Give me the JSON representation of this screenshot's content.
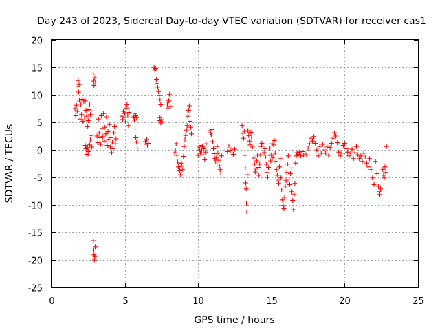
{
  "chart_data": {
    "type": "scatter",
    "title": "Day 243 of 2023, Sidereal Day-to-day VTEC variation (SDTVAR) for receiver cas1",
    "xlabel": "GPS time / hours",
    "ylabel": "SDTVAR / TECUs",
    "xlim": [
      0,
      25
    ],
    "ylim": [
      -25,
      20
    ],
    "xticks": [
      0,
      5,
      10,
      15,
      20,
      25
    ],
    "yticks": [
      -25,
      -20,
      -15,
      -10,
      -5,
      0,
      5,
      10,
      15,
      20
    ],
    "xtick_labels": [
      "0",
      "5",
      "10",
      "15",
      "20",
      "25"
    ],
    "ytick_labels": [
      "-25",
      "-20",
      "-15",
      "-10",
      "-5",
      "0",
      "5",
      "10",
      "15",
      "20"
    ],
    "grid": true,
    "marker": "+",
    "color": "#ff0000",
    "series": [
      {
        "name": "cas1",
        "points": [
          [
            1.6,
            7.5
          ],
          [
            1.65,
            6.2
          ],
          [
            1.7,
            8.1
          ],
          [
            1.75,
            7.0
          ],
          [
            1.8,
            11.5
          ],
          [
            1.82,
            12.6
          ],
          [
            1.85,
            10.5
          ],
          [
            1.88,
            11.9
          ],
          [
            1.9,
            9.0
          ],
          [
            1.95,
            5.6
          ],
          [
            2.0,
            8.3
          ],
          [
            2.05,
            6.4
          ],
          [
            2.1,
            9.2
          ],
          [
            2.15,
            5.2
          ],
          [
            2.2,
            8.7
          ],
          [
            2.25,
            5.8
          ],
          [
            2.3,
            8.9
          ],
          [
            2.35,
            7.2
          ],
          [
            2.4,
            6.1
          ],
          [
            2.45,
            4.2
          ],
          [
            2.5,
            5.3
          ],
          [
            2.55,
            7.3
          ],
          [
            2.6,
            8.3
          ],
          [
            2.65,
            6.4
          ],
          [
            2.7,
            7.1
          ],
          [
            2.3,
            0.8
          ],
          [
            2.35,
            0.2
          ],
          [
            2.4,
            -0.8
          ],
          [
            2.45,
            0.4
          ],
          [
            2.5,
            -0.3
          ],
          [
            2.55,
            -1.0
          ],
          [
            2.6,
            0.9
          ],
          [
            2.65,
            1.8
          ],
          [
            2.7,
            2.6
          ],
          [
            2.75,
            0.5
          ],
          [
            2.85,
            13.8
          ],
          [
            2.88,
            12.5
          ],
          [
            2.9,
            11.7
          ],
          [
            2.95,
            13.1
          ],
          [
            3.0,
            12.2
          ],
          [
            2.85,
            -16.5
          ],
          [
            2.88,
            -18.2
          ],
          [
            2.9,
            -19.1
          ],
          [
            2.92,
            -20.0
          ],
          [
            2.95,
            -19.4
          ],
          [
            2.98,
            -17.6
          ],
          [
            3.1,
            2.5
          ],
          [
            3.15,
            1.3
          ],
          [
            3.2,
            5.6
          ],
          [
            3.25,
            3.1
          ],
          [
            3.3,
            2.2
          ],
          [
            3.35,
            1.0
          ],
          [
            3.4,
            6.2
          ],
          [
            3.45,
            3.9
          ],
          [
            3.5,
            2.4
          ],
          [
            3.55,
            6.6
          ],
          [
            3.6,
            1.6
          ],
          [
            3.65,
            4.1
          ],
          [
            3.7,
            2.9
          ],
          [
            3.75,
            6.0
          ],
          [
            3.8,
            0.8
          ],
          [
            3.85,
            3.3
          ],
          [
            3.9,
            1.9
          ],
          [
            3.95,
            4.6
          ],
          [
            4.0,
            0.5
          ],
          [
            4.05,
            2.2
          ],
          [
            4.1,
            -0.5
          ],
          [
            4.15,
            1.4
          ],
          [
            4.2,
            0.2
          ],
          [
            4.25,
            3.1
          ],
          [
            4.3,
            4.2
          ],
          [
            4.35,
            1.1
          ],
          [
            4.4,
            2.0
          ],
          [
            4.8,
            6.1
          ],
          [
            4.85,
            5.5
          ],
          [
            4.9,
            7.0
          ],
          [
            4.95,
            5.9
          ],
          [
            5.0,
            6.6
          ],
          [
            5.05,
            5.1
          ],
          [
            5.1,
            7.6
          ],
          [
            5.15,
            8.2
          ],
          [
            5.2,
            6.3
          ],
          [
            5.25,
            4.4
          ],
          [
            5.3,
            6.8
          ],
          [
            5.6,
            6.0
          ],
          [
            5.65,
            5.4
          ],
          [
            5.7,
            6.6
          ],
          [
            5.75,
            6.2
          ],
          [
            5.8,
            5.9
          ],
          [
            5.7,
            3.8
          ],
          [
            5.75,
            2.2
          ],
          [
            5.8,
            1.4
          ],
          [
            5.85,
            0.3
          ],
          [
            6.4,
            1.5
          ],
          [
            6.45,
            1.0
          ],
          [
            6.5,
            1.9
          ],
          [
            6.55,
            0.7
          ],
          [
            6.6,
            1.2
          ],
          [
            7.0,
            15.0
          ],
          [
            7.05,
            14.5
          ],
          [
            7.1,
            14.8
          ],
          [
            7.15,
            12.8
          ],
          [
            7.2,
            12.1
          ],
          [
            7.25,
            11.4
          ],
          [
            7.3,
            10.6
          ],
          [
            7.35,
            9.9
          ],
          [
            7.4,
            9.1
          ],
          [
            7.45,
            8.2
          ],
          [
            7.35,
            5.3
          ],
          [
            7.4,
            5.9
          ],
          [
            7.45,
            4.9
          ],
          [
            7.5,
            5.5
          ],
          [
            7.55,
            5.1
          ],
          [
            7.9,
            8.3
          ],
          [
            7.95,
            7.6
          ],
          [
            8.0,
            8.9
          ],
          [
            8.05,
            10.1
          ],
          [
            8.1,
            7.9
          ],
          [
            8.4,
            -0.5
          ],
          [
            8.45,
            -0.2
          ],
          [
            8.5,
            1.1
          ],
          [
            8.55,
            -1.0
          ],
          [
            8.6,
            -2.2
          ],
          [
            8.65,
            -3.1
          ],
          [
            8.7,
            -2.4
          ],
          [
            8.75,
            -3.8
          ],
          [
            8.8,
            -4.5
          ],
          [
            8.85,
            -3.0
          ],
          [
            8.9,
            -2.5
          ],
          [
            8.95,
            -3.6
          ],
          [
            9.0,
            -1.2
          ],
          [
            9.05,
            0.6
          ],
          [
            9.1,
            1.8
          ],
          [
            9.15,
            2.6
          ],
          [
            9.2,
            3.6
          ],
          [
            9.25,
            4.4
          ],
          [
            9.3,
            6.1
          ],
          [
            9.35,
            7.2
          ],
          [
            9.4,
            8.0
          ],
          [
            9.45,
            5.2
          ],
          [
            9.5,
            4.1
          ],
          [
            9.55,
            2.9
          ],
          [
            10.0,
            -1.0
          ],
          [
            10.05,
            0.5
          ],
          [
            10.1,
            0.0
          ],
          [
            10.15,
            -0.6
          ],
          [
            10.2,
            0.8
          ],
          [
            10.25,
            -0.2
          ],
          [
            10.3,
            0.6
          ],
          [
            10.35,
            -0.9
          ],
          [
            10.4,
            0.2
          ],
          [
            10.45,
            -1.8
          ],
          [
            10.5,
            -0.4
          ],
          [
            10.55,
            1.1
          ],
          [
            10.8,
            3.5
          ],
          [
            10.85,
            3.1
          ],
          [
            10.9,
            2.7
          ],
          [
            10.95,
            3.7
          ],
          [
            11.0,
            1.5
          ],
          [
            11.05,
            0.2
          ],
          [
            11.1,
            -0.7
          ],
          [
            11.15,
            -1.6
          ],
          [
            11.2,
            -2.2
          ],
          [
            11.25,
            -1.4
          ],
          [
            11.3,
            0.6
          ],
          [
            11.35,
            -0.6
          ],
          [
            11.4,
            -1.9
          ],
          [
            11.45,
            -2.9
          ],
          [
            11.5,
            -3.6
          ],
          [
            11.55,
            -4.2
          ],
          [
            11.6,
            -1.1
          ],
          [
            12.0,
            -0.3
          ],
          [
            12.1,
            0.7
          ],
          [
            12.2,
            -0.1
          ],
          [
            12.3,
            0.3
          ],
          [
            12.4,
            -0.8
          ],
          [
            12.5,
            0.1
          ],
          [
            13.0,
            4.4
          ],
          [
            13.05,
            3.0
          ],
          [
            13.1,
            2.1
          ],
          [
            13.15,
            3.4
          ],
          [
            13.2,
            -1.0
          ],
          [
            13.22,
            -3.3
          ],
          [
            13.25,
            -6.0
          ],
          [
            13.28,
            -7.1
          ],
          [
            13.3,
            -9.7
          ],
          [
            13.32,
            -11.3
          ],
          [
            13.35,
            -4.5
          ],
          [
            13.4,
            3.5
          ],
          [
            13.45,
            2.6
          ],
          [
            13.5,
            1.6
          ],
          [
            13.55,
            0.9
          ],
          [
            13.6,
            3.2
          ],
          [
            13.65,
            2.3
          ],
          [
            13.7,
            0.5
          ],
          [
            13.8,
            -1.5
          ],
          [
            13.85,
            -2.6
          ],
          [
            13.9,
            -4.0
          ],
          [
            13.95,
            -3.5
          ],
          [
            14.0,
            -2.0
          ],
          [
            14.05,
            -1.0
          ],
          [
            14.1,
            -3.2
          ],
          [
            14.15,
            -4.6
          ],
          [
            14.2,
            -2.6
          ],
          [
            14.25,
            -0.9
          ],
          [
            14.3,
            0.6
          ],
          [
            14.35,
            1.2
          ],
          [
            14.5,
            -0.5
          ],
          [
            14.55,
            0.2
          ],
          [
            14.6,
            -1.3
          ],
          [
            14.65,
            -2.6
          ],
          [
            14.7,
            -4.1
          ],
          [
            14.75,
            -5.0
          ],
          [
            14.8,
            -3.2
          ],
          [
            14.85,
            -1.0
          ],
          [
            14.9,
            0.3
          ],
          [
            14.95,
            -2.0
          ],
          [
            15.0,
            -0.9
          ],
          [
            15.05,
            1.1
          ],
          [
            15.1,
            -1.4
          ],
          [
            15.15,
            0.9
          ],
          [
            15.2,
            1.7
          ],
          [
            15.25,
            -0.6
          ],
          [
            15.3,
            -2.1
          ],
          [
            15.35,
            -3.6
          ],
          [
            15.4,
            -4.6
          ],
          [
            15.45,
            -5.5
          ],
          [
            15.5,
            -6.1
          ],
          [
            15.55,
            -3.1
          ],
          [
            15.6,
            -1.6
          ],
          [
            15.65,
            -5.1
          ],
          [
            15.7,
            -7.3
          ],
          [
            15.75,
            -9.1
          ],
          [
            15.8,
            -10.1
          ],
          [
            15.85,
            -10.7
          ],
          [
            15.9,
            -8.6
          ],
          [
            15.95,
            -6.6
          ],
          [
            16.0,
            -5.6
          ],
          [
            16.05,
            -4.1
          ],
          [
            16.1,
            -2.6
          ],
          [
            16.15,
            -1.1
          ],
          [
            16.2,
            -5.3
          ],
          [
            16.25,
            -6.3
          ],
          [
            16.3,
            -4.3
          ],
          [
            16.35,
            -3.3
          ],
          [
            16.4,
            -7.6
          ],
          [
            16.45,
            -9.2
          ],
          [
            16.5,
            -10.9
          ],
          [
            16.55,
            -8.1
          ],
          [
            16.6,
            -6.1
          ],
          [
            16.65,
            -2.4
          ],
          [
            16.7,
            -1.1
          ],
          [
            16.75,
            -0.5
          ],
          [
            16.8,
            -0.8
          ],
          [
            16.9,
            -0.4
          ],
          [
            17.0,
            -1.1
          ],
          [
            17.1,
            -0.3
          ],
          [
            17.2,
            -1.0
          ],
          [
            17.3,
            -0.6
          ],
          [
            17.4,
            -0.9
          ],
          [
            17.5,
            0.3
          ],
          [
            17.6,
            1.1
          ],
          [
            17.7,
            2.1
          ],
          [
            17.8,
            1.6
          ],
          [
            17.9,
            2.4
          ],
          [
            18.0,
            1.2
          ],
          [
            18.1,
            0.0
          ],
          [
            18.2,
            -1.1
          ],
          [
            18.3,
            0.6
          ],
          [
            18.4,
            -0.6
          ],
          [
            18.5,
            1.0
          ],
          [
            18.6,
            0.0
          ],
          [
            18.7,
            -0.6
          ],
          [
            18.8,
            0.5
          ],
          [
            18.9,
            -1.0
          ],
          [
            19.0,
            0.4
          ],
          [
            19.1,
            1.2
          ],
          [
            19.2,
            2.1
          ],
          [
            19.3,
            3.1
          ],
          [
            19.4,
            2.5
          ],
          [
            19.5,
            1.3
          ],
          [
            19.6,
            -0.4
          ],
          [
            19.7,
            -1.1
          ],
          [
            19.8,
            -0.6
          ],
          [
            19.9,
            0.8
          ],
          [
            20.0,
            1.2
          ],
          [
            20.1,
            0.2
          ],
          [
            20.2,
            -0.4
          ],
          [
            20.3,
            -1.1
          ],
          [
            20.4,
            -0.6
          ],
          [
            20.5,
            0.1
          ],
          [
            20.6,
            -1.6
          ],
          [
            20.7,
            -0.5
          ],
          [
            20.8,
            0.6
          ],
          [
            20.9,
            -0.9
          ],
          [
            21.0,
            -1.6
          ],
          [
            21.1,
            -1.1
          ],
          [
            21.2,
            -2.1
          ],
          [
            21.3,
            -0.6
          ],
          [
            21.4,
            -1.3
          ],
          [
            21.5,
            -2.4
          ],
          [
            21.6,
            -3.1
          ],
          [
            21.7,
            -1.6
          ],
          [
            21.8,
            -3.6
          ],
          [
            21.9,
            -5.1
          ],
          [
            22.0,
            -6.3
          ],
          [
            22.1,
            -2.1
          ],
          [
            22.2,
            -4.3
          ],
          [
            22.3,
            -6.6
          ],
          [
            22.35,
            -7.6
          ],
          [
            22.4,
            -8.1
          ],
          [
            22.45,
            -7.1
          ],
          [
            22.6,
            -3.6
          ],
          [
            22.65,
            -4.6
          ],
          [
            22.7,
            -5.1
          ],
          [
            22.75,
            -3.1
          ],
          [
            22.8,
            -4.1
          ],
          [
            22.85,
            0.6
          ]
        ]
      }
    ]
  }
}
